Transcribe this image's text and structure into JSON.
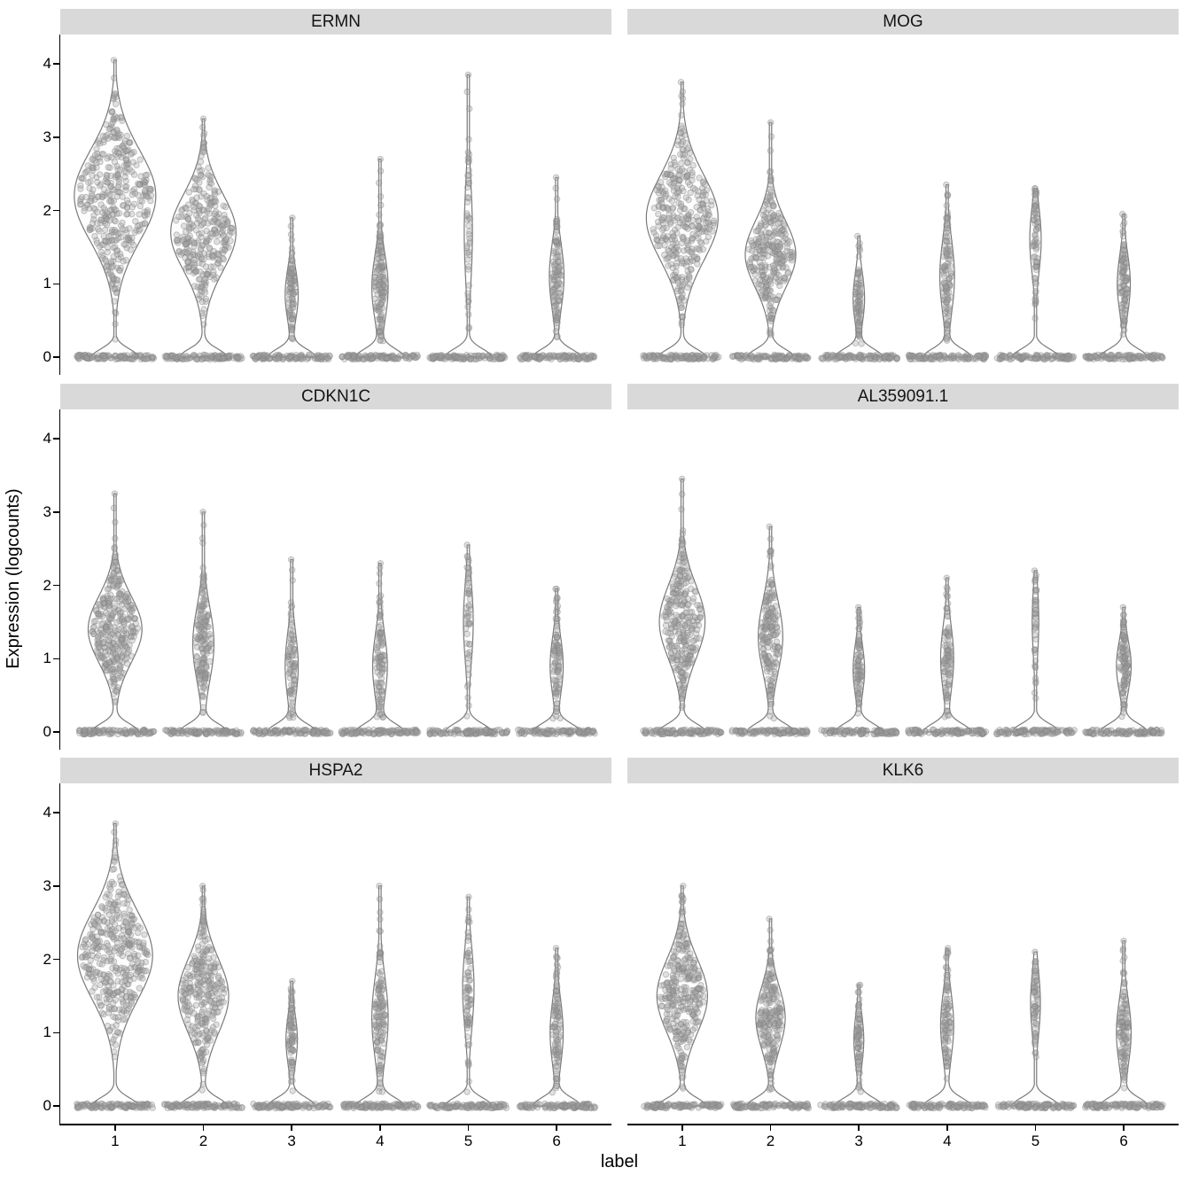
{
  "figure": {
    "ylabel": "Expression (logcounts)",
    "xlabel": "label"
  },
  "chart_data": {
    "type": "violin",
    "title": "",
    "xlabel": "label",
    "ylabel": "Expression (logcounts)",
    "ylim": [
      0,
      4
    ],
    "yticks": [
      "0",
      "1",
      "2",
      "3",
      "4"
    ],
    "categories": [
      "1",
      "2",
      "3",
      "4",
      "5",
      "6"
    ],
    "legend": "none",
    "grid": false,
    "point_color": "#9e9e9e",
    "violin_stroke": "#7a7a7a",
    "violin_fill": "#fdfdfd",
    "strip_bg": "#d9d9d9",
    "facets": [
      {
        "gene": "ERMN",
        "violins": [
          {
            "label": "1",
            "max": 4.05,
            "mode": 2.2,
            "sd": 0.62,
            "rel_width": 1.0,
            "n": 400,
            "zeros": true
          },
          {
            "label": "2",
            "max": 3.25,
            "mode": 1.7,
            "sd": 0.52,
            "rel_width": 0.8,
            "n": 300,
            "zeros": true
          },
          {
            "label": "3",
            "max": 1.9,
            "mode": 0.85,
            "sd": 0.35,
            "rel_width": 0.16,
            "n": 90,
            "zeros": true
          },
          {
            "label": "4",
            "max": 2.7,
            "mode": 0.95,
            "sd": 0.45,
            "rel_width": 0.2,
            "n": 140,
            "zeros": true
          },
          {
            "label": "5",
            "max": 3.85,
            "mode": 1.7,
            "sd": 0.7,
            "rel_width": 0.1,
            "n": 45,
            "zeros": true
          },
          {
            "label": "6",
            "max": 2.45,
            "mode": 1.1,
            "sd": 0.45,
            "rel_width": 0.18,
            "n": 110,
            "zeros": true
          }
        ]
      },
      {
        "gene": "MOG",
        "violins": [
          {
            "label": "1",
            "max": 3.75,
            "mode": 1.9,
            "sd": 0.58,
            "rel_width": 0.88,
            "n": 350,
            "zeros": true
          },
          {
            "label": "2",
            "max": 3.2,
            "mode": 1.4,
            "sd": 0.45,
            "rel_width": 0.62,
            "n": 280,
            "zeros": true
          },
          {
            "label": "3",
            "max": 1.65,
            "mode": 0.8,
            "sd": 0.35,
            "rel_width": 0.14,
            "n": 80,
            "zeros": true
          },
          {
            "label": "4",
            "max": 2.35,
            "mode": 1.1,
            "sd": 0.5,
            "rel_width": 0.18,
            "n": 110,
            "zeros": true
          },
          {
            "label": "5",
            "max": 2.3,
            "mode": 1.6,
            "sd": 0.45,
            "rel_width": 0.14,
            "n": 70,
            "zeros": true
          },
          {
            "label": "6",
            "max": 1.95,
            "mode": 1.0,
            "sd": 0.4,
            "rel_width": 0.16,
            "n": 100,
            "zeros": true
          }
        ]
      },
      {
        "gene": "CDKN1C",
        "violins": [
          {
            "label": "1",
            "max": 3.25,
            "mode": 1.4,
            "sd": 0.45,
            "rel_width": 0.66,
            "n": 320,
            "zeros": true
          },
          {
            "label": "2",
            "max": 3.0,
            "mode": 1.2,
            "sd": 0.5,
            "rel_width": 0.26,
            "n": 160,
            "zeros": true
          },
          {
            "label": "3",
            "max": 2.35,
            "mode": 0.9,
            "sd": 0.45,
            "rel_width": 0.16,
            "n": 80,
            "zeros": true
          },
          {
            "label": "4",
            "max": 2.3,
            "mode": 0.9,
            "sd": 0.45,
            "rel_width": 0.18,
            "n": 100,
            "zeros": true
          },
          {
            "label": "5",
            "max": 2.55,
            "mode": 1.5,
            "sd": 0.55,
            "rel_width": 0.12,
            "n": 50,
            "zeros": true
          },
          {
            "label": "6",
            "max": 1.95,
            "mode": 0.9,
            "sd": 0.4,
            "rel_width": 0.16,
            "n": 90,
            "zeros": true
          }
        ]
      },
      {
        "gene": "AL359091.1",
        "violins": [
          {
            "label": "1",
            "max": 3.45,
            "mode": 1.5,
            "sd": 0.5,
            "rel_width": 0.56,
            "n": 280,
            "zeros": true
          },
          {
            "label": "2",
            "max": 2.8,
            "mode": 1.3,
            "sd": 0.5,
            "rel_width": 0.3,
            "n": 180,
            "zeros": true
          },
          {
            "label": "3",
            "max": 1.7,
            "mode": 0.85,
            "sd": 0.35,
            "rel_width": 0.14,
            "n": 80,
            "zeros": true
          },
          {
            "label": "4",
            "max": 2.1,
            "mode": 1.0,
            "sd": 0.45,
            "rel_width": 0.16,
            "n": 90,
            "zeros": true
          },
          {
            "label": "5",
            "max": 2.2,
            "mode": 1.5,
            "sd": 0.5,
            "rel_width": 0.08,
            "n": 40,
            "zeros": true
          },
          {
            "label": "6",
            "max": 1.7,
            "mode": 0.9,
            "sd": 0.35,
            "rel_width": 0.18,
            "n": 110,
            "zeros": true
          }
        ]
      },
      {
        "gene": "HSPA2",
        "violins": [
          {
            "label": "1",
            "max": 3.85,
            "mode": 2.05,
            "sd": 0.6,
            "rel_width": 0.92,
            "n": 380,
            "zeros": true
          },
          {
            "label": "2",
            "max": 3.0,
            "mode": 1.5,
            "sd": 0.5,
            "rel_width": 0.62,
            "n": 280,
            "zeros": true
          },
          {
            "label": "3",
            "max": 1.7,
            "mode": 0.9,
            "sd": 0.35,
            "rel_width": 0.14,
            "n": 80,
            "zeros": true
          },
          {
            "label": "4",
            "max": 3.0,
            "mode": 1.2,
            "sd": 0.55,
            "rel_width": 0.2,
            "n": 130,
            "zeros": true
          },
          {
            "label": "5",
            "max": 2.85,
            "mode": 1.6,
            "sd": 0.55,
            "rel_width": 0.14,
            "n": 70,
            "zeros": true
          },
          {
            "label": "6",
            "max": 2.15,
            "mode": 1.0,
            "sd": 0.45,
            "rel_width": 0.16,
            "n": 100,
            "zeros": true
          }
        ]
      },
      {
        "gene": "KLK6",
        "violins": [
          {
            "label": "1",
            "max": 3.0,
            "mode": 1.5,
            "sd": 0.5,
            "rel_width": 0.62,
            "n": 300,
            "zeros": true
          },
          {
            "label": "2",
            "max": 2.55,
            "mode": 1.2,
            "sd": 0.42,
            "rel_width": 0.36,
            "n": 200,
            "zeros": true
          },
          {
            "label": "3",
            "max": 1.65,
            "mode": 0.9,
            "sd": 0.35,
            "rel_width": 0.12,
            "n": 70,
            "zeros": true
          },
          {
            "label": "4",
            "max": 2.15,
            "mode": 1.1,
            "sd": 0.45,
            "rel_width": 0.16,
            "n": 90,
            "zeros": true
          },
          {
            "label": "5",
            "max": 2.1,
            "mode": 1.4,
            "sd": 0.45,
            "rel_width": 0.12,
            "n": 60,
            "zeros": true
          },
          {
            "label": "6",
            "max": 2.25,
            "mode": 1.0,
            "sd": 0.45,
            "rel_width": 0.18,
            "n": 110,
            "zeros": true
          }
        ]
      }
    ]
  }
}
